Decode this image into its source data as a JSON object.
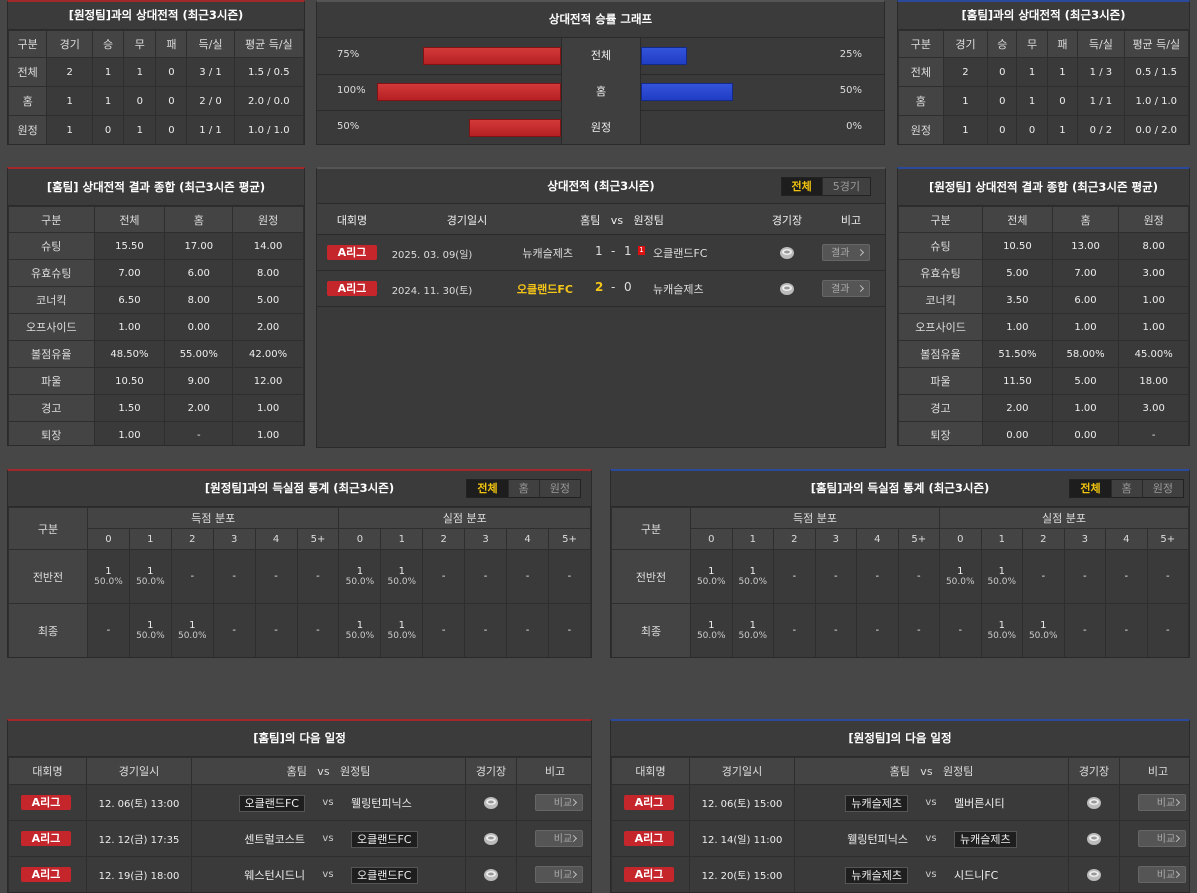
{
  "h2h_away": {
    "title": "[원정팀]과의 상대전적 (최근3시즌)",
    "headers": [
      "구분",
      "경기",
      "승",
      "무",
      "패",
      "득/실",
      "평균 득/실"
    ],
    "rows": [
      [
        "전체",
        "2",
        "1",
        "1",
        "0",
        "3 / 1",
        "1.5 / 0.5"
      ],
      [
        "홈",
        "1",
        "1",
        "0",
        "0",
        "2 / 0",
        "2.0 / 0.0"
      ],
      [
        "원정",
        "1",
        "0",
        "1",
        "0",
        "1 / 1",
        "1.0 / 1.0"
      ]
    ]
  },
  "winrate": {
    "title": "상대전적 승률 그래프",
    "rows": [
      {
        "label": "전체",
        "home": {
          "value": 75,
          "label": "75%"
        },
        "away": {
          "value": 25,
          "label": "25%"
        }
      },
      {
        "label": "홈",
        "home": {
          "value": 100,
          "label": "100%"
        },
        "away": {
          "value": 50,
          "label": "50%"
        }
      },
      {
        "label": "원정",
        "home": {
          "value": 50,
          "label": "50%"
        },
        "away": {
          "value": 0,
          "label": "0%"
        }
      }
    ]
  },
  "h2h_home": {
    "title": "[홈팀]과의 상대전적 (최근3시즌)",
    "headers": [
      "구분",
      "경기",
      "승",
      "무",
      "패",
      "득/실",
      "평균 득/실"
    ],
    "rows": [
      [
        "전체",
        "2",
        "0",
        "1",
        "1",
        "1 / 3",
        "0.5 / 1.5"
      ],
      [
        "홈",
        "1",
        "0",
        "1",
        "0",
        "1 / 1",
        "1.0 / 1.0"
      ],
      [
        "원정",
        "1",
        "0",
        "0",
        "1",
        "0 / 2",
        "0.0 / 2.0"
      ]
    ]
  },
  "home_summary": {
    "title": "[홈팀] 상대전적 결과 종합 (최근3시즌 평균)",
    "headers": [
      "구분",
      "전체",
      "홈",
      "원정"
    ],
    "rows": [
      [
        "슈팅",
        "15.50",
        "17.00",
        "14.00"
      ],
      [
        "유효슈팅",
        "7.00",
        "6.00",
        "8.00"
      ],
      [
        "코너킥",
        "6.50",
        "8.00",
        "5.00"
      ],
      [
        "오프사이드",
        "1.00",
        "0.00",
        "2.00"
      ],
      [
        "볼점유율",
        "48.50%",
        "55.00%",
        "42.00%"
      ],
      [
        "파울",
        "10.50",
        "9.00",
        "12.00"
      ],
      [
        "경고",
        "1.50",
        "2.00",
        "1.00"
      ],
      [
        "퇴장",
        "1.00",
        "-",
        "1.00"
      ]
    ]
  },
  "matches": {
    "title": "상대전적 (최근3시즌)",
    "tabs": [
      "전체",
      "5경기"
    ],
    "headers": [
      "대회명",
      "경기일시",
      "홈팀   vs   원정팀",
      "경기장",
      "비고"
    ],
    "rows": [
      {
        "league": "A리그",
        "date": "2025. 03. 09(일)",
        "home": "뉴캐슬제츠",
        "home_score": 1,
        "sep": "-",
        "away_score": 1,
        "away_red": 1,
        "away": "오클랜드FC",
        "button": "결과"
      },
      {
        "league": "A리그",
        "date": "2024. 11. 30(토)",
        "home": "오클랜드FC",
        "home_score": 2,
        "sep": "-",
        "away_score": 0,
        "away": "뉴캐슬제츠",
        "button": "결과"
      }
    ]
  },
  "away_summary": {
    "title": "[원정팀] 상대전적 결과 종합 (최근3시즌 평균)",
    "headers": [
      "구분",
      "전체",
      "홈",
      "원정"
    ],
    "rows": [
      [
        "슈팅",
        "10.50",
        "13.00",
        "8.00"
      ],
      [
        "유효슈팅",
        "5.00",
        "7.00",
        "3.00"
      ],
      [
        "코너킥",
        "3.50",
        "6.00",
        "1.00"
      ],
      [
        "오프사이드",
        "1.00",
        "1.00",
        "1.00"
      ],
      [
        "볼점유율",
        "51.50%",
        "58.00%",
        "45.00%"
      ],
      [
        "파울",
        "11.50",
        "5.00",
        "18.00"
      ],
      [
        "경고",
        "2.00",
        "1.00",
        "3.00"
      ],
      [
        "퇴장",
        "0.00",
        "0.00",
        "-"
      ]
    ]
  },
  "goals_away": {
    "title": "[원정팀]과의 득실점 통계 (최근3시즌)",
    "tabs": [
      "전체",
      "홈",
      "원정"
    ],
    "col_label": "구분",
    "groups": [
      "득점 분포",
      "실점 분포"
    ],
    "buckets": [
      "0",
      "1",
      "2",
      "3",
      "4",
      "5+"
    ],
    "rows": [
      {
        "label": "전반전",
        "cells": [
          {
            "count": 1,
            "pct": "50.0%"
          },
          {
            "count": 1,
            "pct": "50.0%"
          },
          "-",
          "-",
          "-",
          "-",
          {
            "count": 1,
            "pct": "50.0%"
          },
          {
            "count": 1,
            "pct": "50.0%"
          },
          "-",
          "-",
          "-",
          "-"
        ]
      },
      {
        "label": "최종",
        "cells": [
          "-",
          {
            "count": 1,
            "pct": "50.0%"
          },
          {
            "count": 1,
            "pct": "50.0%"
          },
          "-",
          "-",
          "-",
          {
            "count": 1,
            "pct": "50.0%"
          },
          {
            "count": 1,
            "pct": "50.0%"
          },
          "-",
          "-",
          "-",
          "-"
        ]
      }
    ]
  },
  "goals_home": {
    "title": "[홈팀]과의 득실점 통계 (최근3시즌)",
    "tabs": [
      "전체",
      "홈",
      "원정"
    ],
    "col_label": "구분",
    "groups": [
      "득점 분포",
      "실점 분포"
    ],
    "buckets": [
      "0",
      "1",
      "2",
      "3",
      "4",
      "5+"
    ],
    "rows": [
      {
        "label": "전반전",
        "cells": [
          {
            "count": 1,
            "pct": "50.0%"
          },
          {
            "count": 1,
            "pct": "50.0%"
          },
          "-",
          "-",
          "-",
          "-",
          {
            "count": 1,
            "pct": "50.0%"
          },
          {
            "count": 1,
            "pct": "50.0%"
          },
          "-",
          "-",
          "-",
          "-"
        ]
      },
      {
        "label": "최종",
        "cells": [
          {
            "count": 1,
            "pct": "50.0%"
          },
          {
            "count": 1,
            "pct": "50.0%"
          },
          "-",
          "-",
          "-",
          "-",
          "-",
          {
            "count": 1,
            "pct": "50.0%"
          },
          {
            "count": 1,
            "pct": "50.0%"
          },
          "-",
          "-",
          "-"
        ]
      }
    ]
  },
  "schedule_home": {
    "title": "[홈팀]의 다음 일정",
    "headers": [
      "대회명",
      "경기일시",
      "홈팀   vs   원정팀",
      "경기장",
      "비고"
    ],
    "rows": [
      {
        "league": "A리그",
        "date": "12. 06(토) 13:00",
        "home": "오클랜드FC",
        "vs": "vs",
        "away": "웰링턴피닉스",
        "button": "비교"
      },
      {
        "league": "A리그",
        "date": "12. 12(금) 17:35",
        "home": "센트럴코스트",
        "vs": "vs",
        "away": "오클랜드FC",
        "button": "비교"
      },
      {
        "league": "A리그",
        "date": "12. 19(금) 18:00",
        "home": "웨스턴시드니",
        "vs": "vs",
        "away": "오클랜드FC",
        "button": "비교"
      }
    ]
  },
  "schedule_away": {
    "title": "[원정팀]의 다음 일정",
    "headers": [
      "대회명",
      "경기일시",
      "홈팀   vs   원정팀",
      "경기장",
      "비고"
    ],
    "rows": [
      {
        "league": "A리그",
        "date": "12. 06(토) 15:00",
        "home": "뉴캐슬제츠",
        "vs": "vs",
        "away": "멜버른시티",
        "button": "비교"
      },
      {
        "league": "A리그",
        "date": "12. 14(일) 11:00",
        "home": "웰링턴피닉스",
        "vs": "vs",
        "away": "뉴캐슬제츠",
        "button": "비교"
      },
      {
        "league": "A리그",
        "date": "12. 20(토) 15:00",
        "home": "뉴캐슬제츠",
        "vs": "vs",
        "away": "시드니FC",
        "button": "비교"
      }
    ]
  }
}
